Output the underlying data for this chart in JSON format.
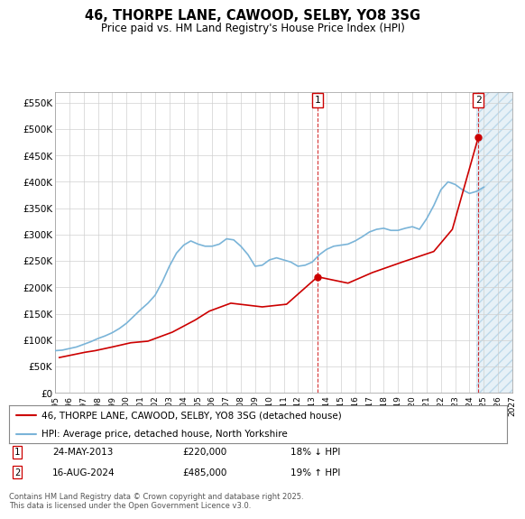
{
  "title": "46, THORPE LANE, CAWOOD, SELBY, YO8 3SG",
  "subtitle": "Price paid vs. HM Land Registry's House Price Index (HPI)",
  "ylabel_ticks": [
    "£0",
    "£50K",
    "£100K",
    "£150K",
    "£200K",
    "£250K",
    "£300K",
    "£350K",
    "£400K",
    "£450K",
    "£500K",
    "£550K"
  ],
  "ytick_values": [
    0,
    50000,
    100000,
    150000,
    200000,
    250000,
    300000,
    350000,
    400000,
    450000,
    500000,
    550000
  ],
  "ylim": [
    0,
    570000
  ],
  "background_color": "#ffffff",
  "plot_bg_color": "#ffffff",
  "hpi_color": "#7ab4d8",
  "price_color": "#cc0000",
  "annotation1": {
    "label": "1",
    "date": "24-MAY-2013",
    "price": 220000,
    "pct": "18% ↓ HPI"
  },
  "annotation2": {
    "label": "2",
    "date": "16-AUG-2024",
    "price": 485000,
    "pct": "19% ↑ HPI"
  },
  "legend1": "46, THORPE LANE, CAWOOD, SELBY, YO8 3SG (detached house)",
  "legend2": "HPI: Average price, detached house, North Yorkshire",
  "footer": "Contains HM Land Registry data © Crown copyright and database right 2025.\nThis data is licensed under the Open Government Licence v3.0.",
  "hpi_data_x": [
    1995.0,
    1995.5,
    1996.0,
    1996.5,
    1997.0,
    1997.5,
    1998.0,
    1998.5,
    1999.0,
    1999.5,
    2000.0,
    2000.5,
    2001.0,
    2001.5,
    2002.0,
    2002.5,
    2003.0,
    2003.5,
    2004.0,
    2004.5,
    2005.0,
    2005.5,
    2006.0,
    2006.5,
    2007.0,
    2007.5,
    2008.0,
    2008.5,
    2009.0,
    2009.5,
    2010.0,
    2010.5,
    2011.0,
    2011.5,
    2012.0,
    2012.5,
    2013.0,
    2013.5,
    2014.0,
    2014.5,
    2015.0,
    2015.5,
    2016.0,
    2016.5,
    2017.0,
    2017.5,
    2018.0,
    2018.5,
    2019.0,
    2019.5,
    2020.0,
    2020.5,
    2021.0,
    2021.5,
    2022.0,
    2022.5,
    2023.0,
    2023.5,
    2024.0,
    2024.5,
    2025.0
  ],
  "hpi_data_y": [
    80000,
    81000,
    84000,
    87000,
    92000,
    97000,
    103000,
    108000,
    114000,
    122000,
    132000,
    145000,
    158000,
    170000,
    185000,
    210000,
    240000,
    265000,
    280000,
    288000,
    282000,
    278000,
    278000,
    282000,
    292000,
    290000,
    278000,
    262000,
    240000,
    242000,
    252000,
    256000,
    252000,
    248000,
    240000,
    242000,
    248000,
    262000,
    272000,
    278000,
    280000,
    282000,
    288000,
    296000,
    305000,
    310000,
    312000,
    308000,
    308000,
    312000,
    315000,
    310000,
    330000,
    355000,
    385000,
    400000,
    395000,
    385000,
    378000,
    382000,
    390000
  ],
  "price_data_x": [
    1995.3,
    1996.2,
    1997.1,
    1997.8,
    1999.0,
    2000.3,
    2001.5,
    2003.2,
    2004.8,
    2005.8,
    2007.3,
    2009.5,
    2011.2,
    2013.37,
    2015.5,
    2017.2,
    2019.3,
    2021.5,
    2022.8,
    2024.62
  ],
  "price_data_y": [
    67000,
    72000,
    77000,
    80000,
    87000,
    95000,
    98000,
    115000,
    138000,
    155000,
    170000,
    163000,
    168000,
    220000,
    208000,
    228000,
    248000,
    268000,
    310000,
    485000
  ],
  "marker1_x": 2013.37,
  "marker1_y": 220000,
  "marker2_x": 2024.62,
  "marker2_y": 485000,
  "hatch_start": 2024.5,
  "xlim": [
    1995,
    2027
  ]
}
